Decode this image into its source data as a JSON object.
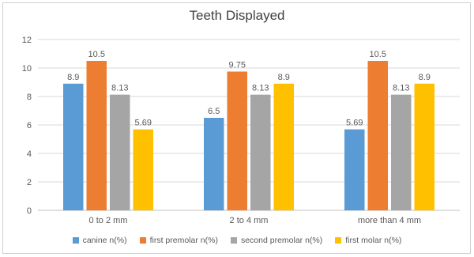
{
  "colors": {
    "canine": "#5b9bd5",
    "first_premolar": "#ed7d31",
    "second_premolar": "#a5a5a5",
    "first_molar": "#ffc000",
    "grid": "#d9d9d9",
    "axis": "#bfbfbf"
  },
  "chart_data": {
    "type": "bar",
    "title": "Teeth Displayed",
    "xlabel": "",
    "ylabel": "",
    "ylim": [
      0,
      12
    ],
    "yticks": [
      0,
      2,
      4,
      6,
      8,
      10,
      12
    ],
    "grid": true,
    "legend_position": "bottom",
    "categories": [
      "0 to 2 mm",
      "2 to 4 mm",
      "more than 4 mm"
    ],
    "series": [
      {
        "name": "canine n(%)",
        "color_key": "canine",
        "values": [
          8.9,
          6.5,
          5.69
        ],
        "labels": [
          "8.9",
          "6.5",
          "5.69"
        ]
      },
      {
        "name": "first premolar n(%)",
        "color_key": "first_premolar",
        "values": [
          10.5,
          9.75,
          10.5
        ],
        "labels": [
          "10.5",
          "9.75",
          "10.5"
        ]
      },
      {
        "name": "second premolar n(%)",
        "color_key": "second_premolar",
        "values": [
          8.13,
          8.13,
          8.13
        ],
        "labels": [
          "8.13",
          "8.13",
          "8.13"
        ]
      },
      {
        "name": "first molar n(%)",
        "color_key": "first_molar",
        "values": [
          5.69,
          8.9,
          8.9
        ],
        "labels": [
          "5.69",
          "8.9",
          "8.9"
        ]
      }
    ]
  }
}
